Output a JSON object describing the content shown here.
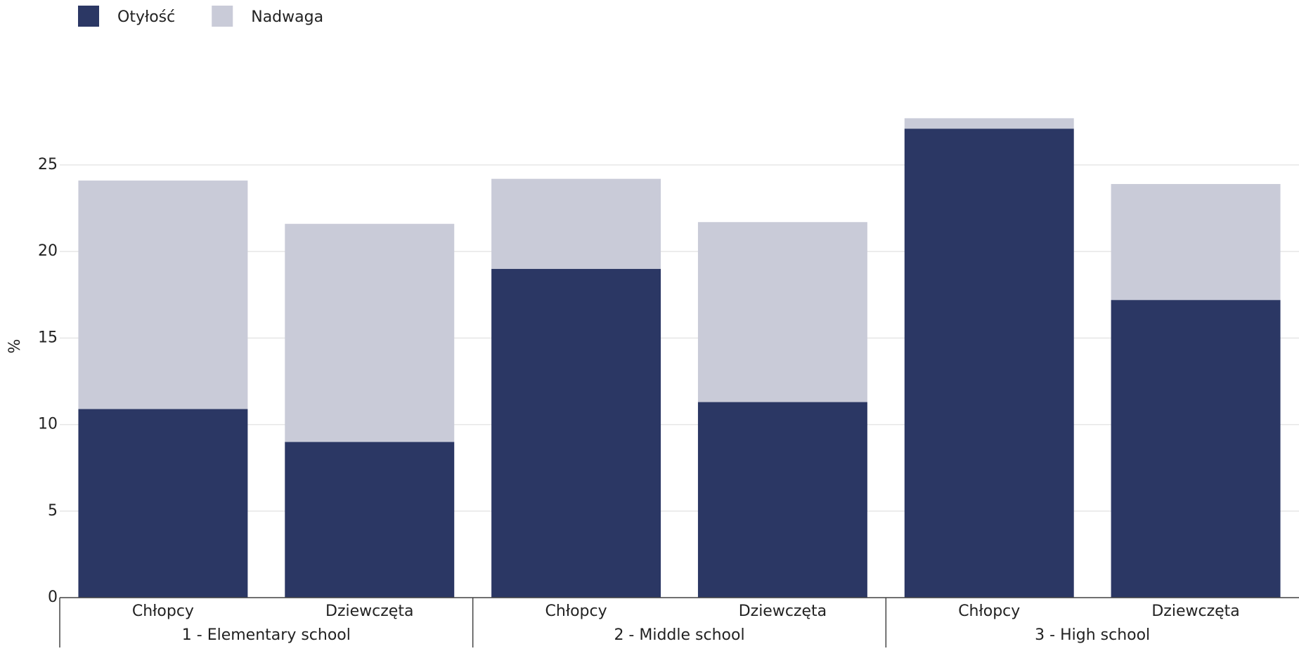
{
  "chart_data": {
    "type": "stacked_bar",
    "y_label": "%",
    "categories": [
      "Chłopcy",
      "Dziewczęta",
      "Chłopcy",
      "Dziewczęta",
      "Chłopcy",
      "Dziewczęta"
    ],
    "groups": [
      "1 - Elementary school",
      "2 - Middle school",
      "3 - High school"
    ],
    "series": [
      {
        "name": "Otyłość",
        "color": "#2b3764",
        "values": [
          10.9,
          9.0,
          19.0,
          11.3,
          27.1,
          17.2
        ]
      },
      {
        "name": "Nadwaga",
        "color": "#c9cbd8",
        "values": [
          13.2,
          12.6,
          5.2,
          10.4,
          0.6,
          6.7
        ]
      }
    ],
    "ylim": [
      0,
      28
    ],
    "yticks": [
      0,
      5,
      10,
      15,
      20,
      25
    ],
    "grid": true,
    "legend": "top-left"
  }
}
